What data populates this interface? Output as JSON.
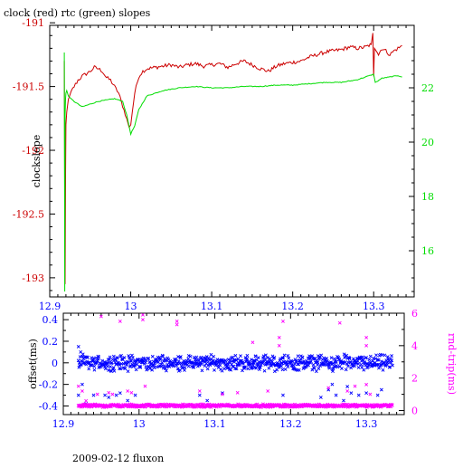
{
  "title": "clock (red) rtc (green) slopes",
  "footer": "2009-02-12 fluxon",
  "colors": {
    "clock": "#cc0000",
    "rtc": "#00dd00",
    "offset": "#0000ff",
    "rndtrip": "#ff00ff",
    "axis": "#000000",
    "background": "#ffffff"
  },
  "chart_data": [
    {
      "type": "line",
      "title": "clock (red) rtc (green) slopes",
      "ylabel": "clockslope",
      "xlim": [
        12.9,
        13.35
      ],
      "ylim": [
        -193.15,
        -191.02
      ],
      "y2lim": [
        14.3,
        24.3
      ],
      "x_ticks": [
        12.9,
        13,
        13.1,
        13.2,
        13.3
      ],
      "x_tick_labels": [
        "12.9",
        "13",
        "13.1",
        "13.2",
        "13.3"
      ],
      "y_ticks": [
        -191,
        -191.5,
        -192,
        -192.5,
        -193
      ],
      "y_tick_labels": [
        "-191",
        "-191.5",
        "-192",
        "-192.5",
        "-193"
      ],
      "y2_ticks": [
        22,
        20,
        18,
        16
      ],
      "y2_tick_labels": [
        "22",
        "20",
        "18",
        "16"
      ],
      "grid": false,
      "series": [
        {
          "color": "red",
          "axis": "left",
          "x": [
            12.918,
            12.9185,
            12.919,
            12.9195,
            12.92,
            12.921,
            12.923,
            12.926,
            12.93,
            12.935,
            12.94,
            12.945,
            12.95,
            12.955,
            12.96,
            12.965,
            12.97,
            12.975,
            12.98,
            12.985,
            12.99,
            12.995,
            12.998,
            13.0,
            13.002,
            13.005,
            13.01,
            13.015,
            13.02,
            13.03,
            13.04,
            13.05,
            13.06,
            13.07,
            13.08,
            13.09,
            13.1,
            13.11,
            13.12,
            13.13,
            13.14,
            13.15,
            13.16,
            13.17,
            13.18,
            13.19,
            13.2,
            13.21,
            13.22,
            13.23,
            13.24,
            13.25,
            13.26,
            13.27,
            13.28,
            13.29,
            13.297,
            13.299,
            13.3,
            13.301,
            13.303,
            13.306,
            13.31,
            13.315,
            13.32,
            13.325,
            13.33,
            13.335
          ],
          "y": [
            -191.3,
            -192.5,
            -193.05,
            -192.2,
            -191.8,
            -191.7,
            -191.6,
            -191.55,
            -191.5,
            -191.45,
            -191.42,
            -191.4,
            -191.38,
            -191.35,
            -191.36,
            -191.38,
            -191.43,
            -191.45,
            -191.5,
            -191.55,
            -191.65,
            -191.75,
            -191.82,
            -191.8,
            -191.7,
            -191.55,
            -191.42,
            -191.38,
            -191.36,
            -191.35,
            -191.34,
            -191.33,
            -191.35,
            -191.33,
            -191.32,
            -191.34,
            -191.33,
            -191.32,
            -191.35,
            -191.32,
            -191.3,
            -191.33,
            -191.36,
            -191.38,
            -191.34,
            -191.32,
            -191.31,
            -191.3,
            -191.27,
            -191.25,
            -191.23,
            -191.22,
            -191.21,
            -191.19,
            -191.2,
            -191.19,
            -191.17,
            -191.08,
            -191.42,
            -191.2,
            -191.22,
            -191.25,
            -191.2,
            -191.22,
            -191.25,
            -191.22,
            -191.2,
            -191.18
          ]
        },
        {
          "color": "green",
          "axis": "right",
          "x": [
            12.918,
            12.9185,
            12.919,
            12.9195,
            12.92,
            12.921,
            12.923,
            12.926,
            12.93,
            12.935,
            12.94,
            12.95,
            12.96,
            12.97,
            12.98,
            12.99,
            12.995,
            13.0,
            13.005,
            13.01,
            13.02,
            13.03,
            13.04,
            13.05,
            13.06,
            13.08,
            13.1,
            13.12,
            13.14,
            13.16,
            13.18,
            13.2,
            13.22,
            13.24,
            13.26,
            13.28,
            13.3,
            13.302,
            13.305,
            13.31,
            13.32,
            13.33,
            13.335
          ],
          "y": [
            23.3,
            14.5,
            21.0,
            21.6,
            21.8,
            21.9,
            21.7,
            21.6,
            21.5,
            21.4,
            21.3,
            21.4,
            21.5,
            21.55,
            21.6,
            21.5,
            21.0,
            20.3,
            20.6,
            21.2,
            21.7,
            21.8,
            21.9,
            21.95,
            22.0,
            22.05,
            22.0,
            22.0,
            22.05,
            22.05,
            22.1,
            22.1,
            22.15,
            22.2,
            22.2,
            22.3,
            22.5,
            22.2,
            22.25,
            22.35,
            22.4,
            22.45,
            22.4
          ]
        }
      ]
    },
    {
      "type": "scatter",
      "xlim": [
        12.9,
        13.35
      ],
      "ylim": [
        -0.48,
        0.46
      ],
      "y2lim": [
        -0.25,
        6.0
      ],
      "ylabel": "offset(ms)",
      "y2label": "rnd-trip(ms)",
      "x_ticks": [
        12.9,
        13,
        13.1,
        13.2,
        13.3
      ],
      "x_tick_labels": [
        "12.9",
        "13",
        "13.1",
        "13.2",
        "13.3"
      ],
      "y_ticks": [
        0.4,
        0.2,
        0,
        -0.2,
        -0.4
      ],
      "y_tick_labels": [
        "0.4",
        "0.2",
        "0",
        "-0.2",
        "-0.4"
      ],
      "y2_ticks": [
        6,
        4,
        2,
        0
      ],
      "y2_tick_labels": [
        "6",
        "4",
        "2",
        "0"
      ],
      "series": [
        {
          "color": "blue",
          "axis": "left",
          "marker": "x",
          "x_range": [
            12.92,
            13.335
          ],
          "y_center": 0.0,
          "y_spread": 0.06,
          "outliers": [
            [
              12.92,
              0.15
            ],
            [
              12.92,
              -0.3
            ],
            [
              12.923,
              0.1
            ],
            [
              12.925,
              -0.2
            ],
            [
              12.93,
              -0.38
            ],
            [
              12.94,
              -0.3
            ],
            [
              12.955,
              -0.3
            ],
            [
              12.96,
              -0.32
            ],
            [
              12.97,
              -0.3
            ],
            [
              12.975,
              -0.28
            ],
            [
              12.985,
              -0.35
            ],
            [
              12.995,
              -0.3
            ],
            [
              13.08,
              -0.3
            ],
            [
              13.09,
              -0.35
            ],
            [
              13.11,
              -0.28
            ],
            [
              13.19,
              -0.3
            ],
            [
              13.24,
              -0.32
            ],
            [
              13.25,
              -0.25
            ],
            [
              13.255,
              -0.2
            ],
            [
              13.26,
              -0.3
            ],
            [
              13.27,
              -0.35
            ],
            [
              13.275,
              -0.22
            ],
            [
              13.28,
              -0.28
            ],
            [
              13.29,
              -0.3
            ],
            [
              13.3,
              -0.28
            ],
            [
              13.315,
              -0.3
            ],
            [
              13.32,
              -0.25
            ]
          ]
        },
        {
          "color": "magenta",
          "axis": "right",
          "marker": "x",
          "x_range": [
            12.92,
            13.335
          ],
          "y_center": 0.3,
          "y_spread": 0.08,
          "outliers": [
            [
              12.92,
              1.5
            ],
            [
              12.925,
              1.2
            ],
            [
              12.93,
              0.6
            ],
            [
              12.945,
              1.0
            ],
            [
              12.95,
              5.8
            ],
            [
              12.96,
              1.1
            ],
            [
              12.965,
              1.0
            ],
            [
              12.975,
              5.5
            ],
            [
              12.985,
              1.2
            ],
            [
              12.99,
              1.1
            ],
            [
              13.005,
              5.9
            ],
            [
              13.005,
              5.6
            ],
            [
              13.008,
              1.5
            ],
            [
              13.05,
              5.3
            ],
            [
              13.05,
              5.5
            ],
            [
              13.08,
              1.2
            ],
            [
              13.11,
              1.0
            ],
            [
              13.13,
              1.1
            ],
            [
              13.15,
              4.2
            ],
            [
              13.17,
              1.2
            ],
            [
              13.185,
              4.0
            ],
            [
              13.185,
              4.5
            ],
            [
              13.19,
              5.5
            ],
            [
              13.25,
              1.4
            ],
            [
              13.265,
              5.4
            ],
            [
              13.275,
              1.2
            ],
            [
              13.285,
              1.5
            ],
            [
              13.3,
              4.5
            ],
            [
              13.3,
              4.0
            ],
            [
              13.305,
              1.0
            ],
            [
              13.3,
              1.6
            ]
          ]
        }
      ]
    }
  ]
}
